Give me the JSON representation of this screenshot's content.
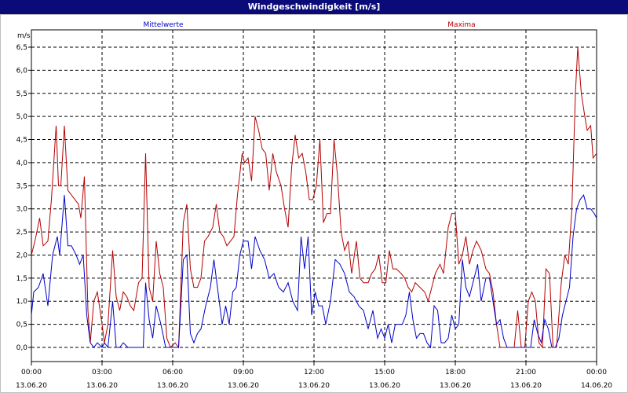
{
  "window": {
    "title": "Windgeschwindigkeit [m/s]"
  },
  "colors": {
    "title_bar": "#0a0a78",
    "mean_series": "#0000c8",
    "max_series": "#b40000",
    "grid": "#000000"
  },
  "chart_data": {
    "type": "line",
    "title": "Windgeschwindigkeit [m/s]",
    "ylabel": "m/s",
    "ylim": [
      0,
      6.5
    ],
    "y_ticks": [
      "0,0",
      "0,5",
      "1,0",
      "1,5",
      "2,0",
      "2,5",
      "3,0",
      "3,5",
      "4,0",
      "4,5",
      "5,0",
      "5,5",
      "6,0",
      "6,5"
    ],
    "x_range_hours": [
      0,
      24
    ],
    "x_ticks": [
      {
        "time": "00:00",
        "date": "13.06.20"
      },
      {
        "time": "03:00",
        "date": "13.06.20"
      },
      {
        "time": "06:00",
        "date": "13.06.20"
      },
      {
        "time": "09:00",
        "date": "13.06.20"
      },
      {
        "time": "12:00",
        "date": "13.06.20"
      },
      {
        "time": "15:00",
        "date": "13.06.20"
      },
      {
        "time": "18:00",
        "date": "13.06.20"
      },
      {
        "time": "21:00",
        "date": "13.06.20"
      },
      {
        "time": "00:00",
        "date": "14.06.20"
      }
    ],
    "grid": true,
    "series": [
      {
        "name": "Mittelwerte",
        "color": "#0000c8",
        "points": [
          [
            0.0,
            0.7
          ],
          [
            0.1,
            1.2
          ],
          [
            0.3,
            1.3
          ],
          [
            0.5,
            1.6
          ],
          [
            0.7,
            0.9
          ],
          [
            0.9,
            2.0
          ],
          [
            1.1,
            2.4
          ],
          [
            1.2,
            2.0
          ],
          [
            1.4,
            3.3
          ],
          [
            1.55,
            2.2
          ],
          [
            1.7,
            2.2
          ],
          [
            1.9,
            2.0
          ],
          [
            2.05,
            1.8
          ],
          [
            2.2,
            2.0
          ],
          [
            2.35,
            0.7
          ],
          [
            2.5,
            0.1
          ],
          [
            2.65,
            0.0
          ],
          [
            2.8,
            0.1
          ],
          [
            3.0,
            0.0
          ],
          [
            3.1,
            0.1
          ],
          [
            3.25,
            0.0
          ],
          [
            3.45,
            1.0
          ],
          [
            3.6,
            0.0
          ],
          [
            3.75,
            0.0
          ],
          [
            3.9,
            0.1
          ],
          [
            4.1,
            0.0
          ],
          [
            4.3,
            0.0
          ],
          [
            4.5,
            0.0
          ],
          [
            4.75,
            0.0
          ],
          [
            4.85,
            1.4
          ],
          [
            5.0,
            0.6
          ],
          [
            5.15,
            0.2
          ],
          [
            5.3,
            0.9
          ],
          [
            5.5,
            0.5
          ],
          [
            5.7,
            0.0
          ],
          [
            5.85,
            0.0
          ],
          [
            6.1,
            0.0
          ],
          [
            6.25,
            0.0
          ],
          [
            6.45,
            1.9
          ],
          [
            6.6,
            2.0
          ],
          [
            6.75,
            0.3
          ],
          [
            6.9,
            0.1
          ],
          [
            7.05,
            0.3
          ],
          [
            7.2,
            0.4
          ],
          [
            7.4,
            0.9
          ],
          [
            7.6,
            1.3
          ],
          [
            7.75,
            1.9
          ],
          [
            7.95,
            1.1
          ],
          [
            8.1,
            0.5
          ],
          [
            8.25,
            0.9
          ],
          [
            8.4,
            0.5
          ],
          [
            8.55,
            1.2
          ],
          [
            8.7,
            1.3
          ],
          [
            8.85,
            2.0
          ],
          [
            9.0,
            2.3
          ],
          [
            9.2,
            2.3
          ],
          [
            9.35,
            1.7
          ],
          [
            9.5,
            2.4
          ],
          [
            9.7,
            2.1
          ],
          [
            9.9,
            1.9
          ],
          [
            10.1,
            1.5
          ],
          [
            10.3,
            1.6
          ],
          [
            10.5,
            1.3
          ],
          [
            10.7,
            1.2
          ],
          [
            10.9,
            1.4
          ],
          [
            11.1,
            1.0
          ],
          [
            11.3,
            0.8
          ],
          [
            11.45,
            2.4
          ],
          [
            11.6,
            1.7
          ],
          [
            11.75,
            2.4
          ],
          [
            11.9,
            0.7
          ],
          [
            12.05,
            1.2
          ],
          [
            12.2,
            0.9
          ],
          [
            12.35,
            0.9
          ],
          [
            12.5,
            0.5
          ],
          [
            12.7,
            1.0
          ],
          [
            12.9,
            1.9
          ],
          [
            13.1,
            1.8
          ],
          [
            13.3,
            1.6
          ],
          [
            13.5,
            1.2
          ],
          [
            13.7,
            1.1
          ],
          [
            13.9,
            0.9
          ],
          [
            14.1,
            0.8
          ],
          [
            14.3,
            0.4
          ],
          [
            14.5,
            0.8
          ],
          [
            14.7,
            0.2
          ],
          [
            14.85,
            0.4
          ],
          [
            15.0,
            0.2
          ],
          [
            15.15,
            0.5
          ],
          [
            15.3,
            0.1
          ],
          [
            15.45,
            0.5
          ],
          [
            15.6,
            0.5
          ],
          [
            15.75,
            0.5
          ],
          [
            15.9,
            0.7
          ],
          [
            16.05,
            1.2
          ],
          [
            16.2,
            0.6
          ],
          [
            16.35,
            0.2
          ],
          [
            16.5,
            0.3
          ],
          [
            16.65,
            0.3
          ],
          [
            16.8,
            0.1
          ],
          [
            16.95,
            0.0
          ],
          [
            17.1,
            0.9
          ],
          [
            17.25,
            0.8
          ],
          [
            17.4,
            0.1
          ],
          [
            17.55,
            0.1
          ],
          [
            17.7,
            0.2
          ],
          [
            17.85,
            0.7
          ],
          [
            18.0,
            0.4
          ],
          [
            18.15,
            0.5
          ],
          [
            18.3,
            1.9
          ],
          [
            18.45,
            1.3
          ],
          [
            18.6,
            1.1
          ],
          [
            18.8,
            1.5
          ],
          [
            18.95,
            1.8
          ],
          [
            19.1,
            1.0
          ],
          [
            19.3,
            1.5
          ],
          [
            19.45,
            1.5
          ],
          [
            19.6,
            1.0
          ],
          [
            19.75,
            0.5
          ],
          [
            19.9,
            0.6
          ],
          [
            20.05,
            0.2
          ],
          [
            20.2,
            0.0
          ],
          [
            20.4,
            0.0
          ],
          [
            20.6,
            0.0
          ],
          [
            20.75,
            0.0
          ],
          [
            20.9,
            0.0
          ],
          [
            21.05,
            0.0
          ],
          [
            21.2,
            0.0
          ],
          [
            21.35,
            0.6
          ],
          [
            21.5,
            0.3
          ],
          [
            21.65,
            0.1
          ],
          [
            21.8,
            0.6
          ],
          [
            21.95,
            0.4
          ],
          [
            22.1,
            0.0
          ],
          [
            22.25,
            0.0
          ],
          [
            22.4,
            0.2
          ],
          [
            22.55,
            0.7
          ],
          [
            22.7,
            1.0
          ],
          [
            22.85,
            1.3
          ],
          [
            23.0,
            2.4
          ],
          [
            23.15,
            3.0
          ],
          [
            23.3,
            3.2
          ],
          [
            23.45,
            3.3
          ],
          [
            23.6,
            3.0
          ],
          [
            23.75,
            3.0
          ],
          [
            23.9,
            2.9
          ],
          [
            24.0,
            2.8
          ]
        ]
      },
      {
        "name": "Maxima",
        "color": "#b40000",
        "points": [
          [
            0.0,
            2.0
          ],
          [
            0.15,
            2.3
          ],
          [
            0.35,
            2.8
          ],
          [
            0.5,
            2.2
          ],
          [
            0.7,
            2.3
          ],
          [
            0.85,
            3.2
          ],
          [
            1.05,
            4.8
          ],
          [
            1.15,
            3.5
          ],
          [
            1.25,
            3.5
          ],
          [
            1.4,
            4.8
          ],
          [
            1.55,
            3.4
          ],
          [
            1.7,
            3.3
          ],
          [
            1.85,
            3.2
          ],
          [
            2.0,
            3.1
          ],
          [
            2.1,
            2.8
          ],
          [
            2.25,
            3.7
          ],
          [
            2.4,
            0.8
          ],
          [
            2.5,
            0.1
          ],
          [
            2.65,
            1.0
          ],
          [
            2.8,
            1.2
          ],
          [
            3.0,
            0.5
          ],
          [
            3.1,
            0.1
          ],
          [
            3.25,
            0.5
          ],
          [
            3.45,
            2.1
          ],
          [
            3.6,
            1.1
          ],
          [
            3.75,
            0.8
          ],
          [
            3.9,
            1.2
          ],
          [
            4.05,
            1.1
          ],
          [
            4.2,
            0.9
          ],
          [
            4.35,
            0.8
          ],
          [
            4.55,
            1.4
          ],
          [
            4.7,
            1.5
          ],
          [
            4.85,
            4.2
          ],
          [
            5.0,
            1.3
          ],
          [
            5.15,
            1.0
          ],
          [
            5.3,
            2.3
          ],
          [
            5.45,
            1.6
          ],
          [
            5.6,
            1.3
          ],
          [
            5.75,
            0.2
          ],
          [
            5.9,
            0.0
          ],
          [
            6.1,
            0.1
          ],
          [
            6.25,
            0.0
          ],
          [
            6.45,
            2.7
          ],
          [
            6.6,
            3.1
          ],
          [
            6.75,
            1.7
          ],
          [
            6.9,
            1.3
          ],
          [
            7.05,
            1.3
          ],
          [
            7.2,
            1.5
          ],
          [
            7.35,
            2.3
          ],
          [
            7.5,
            2.4
          ],
          [
            7.7,
            2.6
          ],
          [
            7.85,
            3.1
          ],
          [
            8.0,
            2.5
          ],
          [
            8.15,
            2.4
          ],
          [
            8.3,
            2.2
          ],
          [
            8.45,
            2.3
          ],
          [
            8.6,
            2.4
          ],
          [
            8.75,
            3.3
          ],
          [
            8.95,
            4.2
          ],
          [
            9.05,
            4.0
          ],
          [
            9.2,
            4.1
          ],
          [
            9.35,
            3.6
          ],
          [
            9.5,
            5.0
          ],
          [
            9.65,
            4.7
          ],
          [
            9.8,
            4.3
          ],
          [
            9.95,
            4.2
          ],
          [
            10.1,
            3.4
          ],
          [
            10.25,
            4.2
          ],
          [
            10.4,
            3.8
          ],
          [
            10.6,
            3.5
          ],
          [
            10.75,
            3.0
          ],
          [
            10.9,
            2.6
          ],
          [
            11.05,
            3.9
          ],
          [
            11.2,
            4.6
          ],
          [
            11.35,
            4.1
          ],
          [
            11.5,
            4.2
          ],
          [
            11.65,
            3.8
          ],
          [
            11.8,
            3.2
          ],
          [
            11.95,
            3.2
          ],
          [
            12.1,
            3.5
          ],
          [
            12.25,
            4.5
          ],
          [
            12.4,
            2.7
          ],
          [
            12.55,
            2.9
          ],
          [
            12.7,
            2.9
          ],
          [
            12.85,
            4.5
          ],
          [
            13.0,
            3.7
          ],
          [
            13.15,
            2.5
          ],
          [
            13.3,
            2.1
          ],
          [
            13.45,
            2.3
          ],
          [
            13.6,
            1.6
          ],
          [
            13.8,
            2.3
          ],
          [
            13.95,
            1.5
          ],
          [
            14.1,
            1.4
          ],
          [
            14.3,
            1.4
          ],
          [
            14.45,
            1.6
          ],
          [
            14.6,
            1.7
          ],
          [
            14.75,
            2.0
          ],
          [
            14.9,
            1.4
          ],
          [
            15.05,
            1.4
          ],
          [
            15.2,
            2.1
          ],
          [
            15.35,
            1.7
          ],
          [
            15.5,
            1.7
          ],
          [
            15.7,
            1.6
          ],
          [
            15.85,
            1.5
          ],
          [
            16.0,
            1.3
          ],
          [
            16.15,
            1.2
          ],
          [
            16.3,
            1.4
          ],
          [
            16.5,
            1.3
          ],
          [
            16.7,
            1.2
          ],
          [
            16.85,
            1.0
          ],
          [
            17.0,
            1.3
          ],
          [
            17.15,
            1.6
          ],
          [
            17.35,
            1.8
          ],
          [
            17.5,
            1.6
          ],
          [
            17.7,
            2.6
          ],
          [
            17.85,
            2.9
          ],
          [
            18.0,
            2.9
          ],
          [
            18.15,
            1.8
          ],
          [
            18.3,
            2.0
          ],
          [
            18.45,
            2.4
          ],
          [
            18.6,
            1.8
          ],
          [
            18.75,
            2.1
          ],
          [
            18.9,
            2.3
          ],
          [
            19.1,
            2.1
          ],
          [
            19.3,
            1.7
          ],
          [
            19.45,
            1.6
          ],
          [
            19.6,
            1.2
          ],
          [
            19.75,
            0.5
          ],
          [
            19.9,
            0.0
          ],
          [
            20.1,
            0.0
          ],
          [
            20.3,
            0.0
          ],
          [
            20.5,
            0.0
          ],
          [
            20.65,
            0.8
          ],
          [
            20.8,
            0.0
          ],
          [
            20.95,
            0.0
          ],
          [
            21.1,
            1.0
          ],
          [
            21.25,
            1.2
          ],
          [
            21.4,
            1.0
          ],
          [
            21.55,
            0.1
          ],
          [
            21.7,
            0.0
          ],
          [
            21.85,
            1.7
          ],
          [
            22.0,
            1.6
          ],
          [
            22.15,
            0.0
          ],
          [
            22.3,
            0.0
          ],
          [
            22.5,
            1.4
          ],
          [
            22.65,
            2.0
          ],
          [
            22.8,
            1.8
          ],
          [
            22.95,
            3.0
          ],
          [
            23.1,
            5.5
          ],
          [
            23.2,
            6.5
          ],
          [
            23.35,
            5.5
          ],
          [
            23.5,
            5.0
          ],
          [
            23.6,
            4.7
          ],
          [
            23.75,
            4.8
          ],
          [
            23.85,
            4.1
          ],
          [
            24.0,
            4.2
          ]
        ]
      }
    ]
  }
}
